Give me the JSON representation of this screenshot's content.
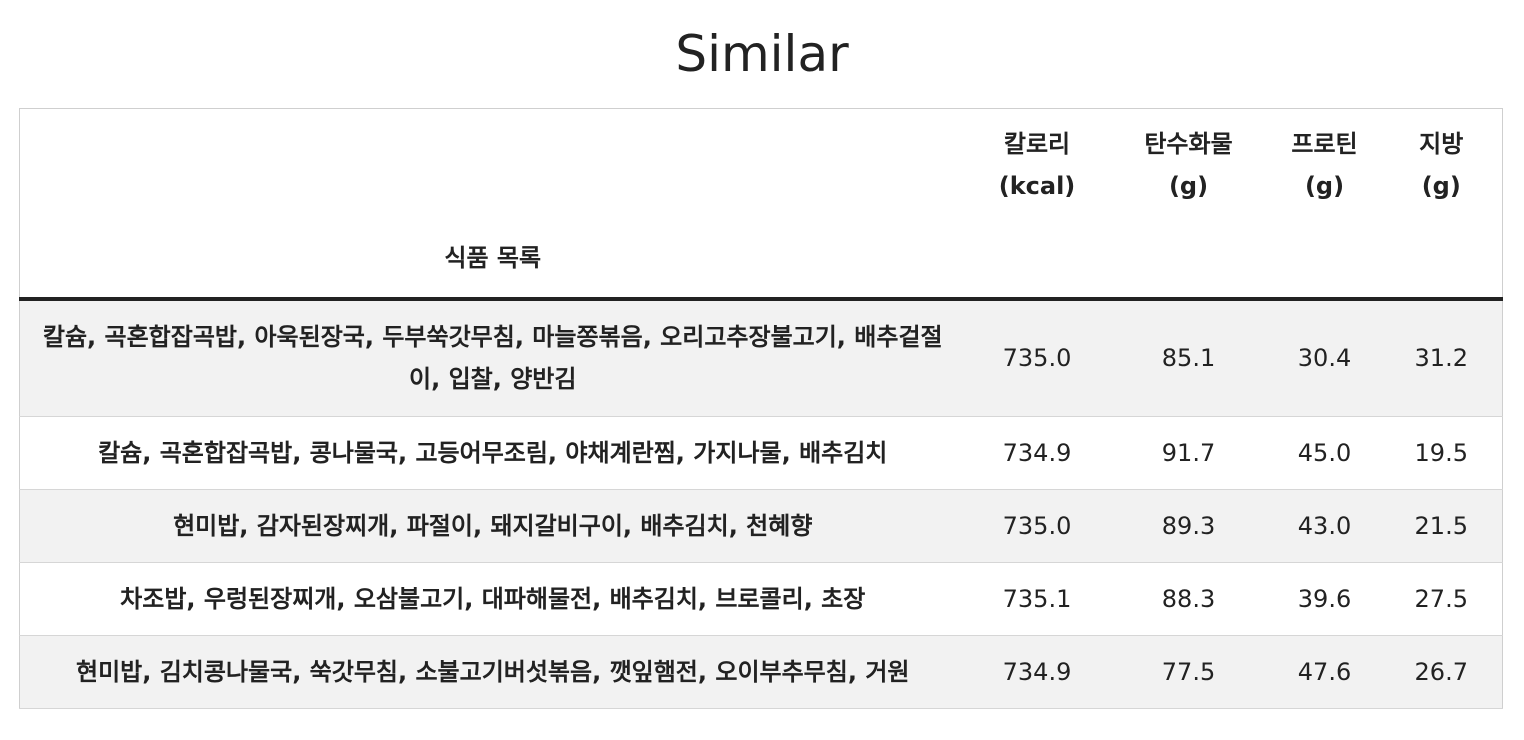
{
  "title": "Similar",
  "table": {
    "headers": {
      "food": "식품 목록",
      "kcal": [
        "칼로리",
        "(kcal)"
      ],
      "carb": [
        "탄수화물",
        "(g)"
      ],
      "protein": [
        "프로틴",
        "(g)"
      ],
      "fat": [
        "지방",
        "(g)"
      ]
    },
    "rows": [
      {
        "food": "칼슘, 곡혼합잡곡밥, 아욱된장국, 두부쑥갓무침, 마늘쫑볶음, 오리고추장불고기, 배추겉절이, 입찰, 양반김",
        "kcal": "735.0",
        "carb": "85.1",
        "protein": "30.4",
        "fat": "31.2"
      },
      {
        "food": "칼슘, 곡혼합잡곡밥, 콩나물국, 고등어무조림, 야채계란찜, 가지나물, 배추김치",
        "kcal": "734.9",
        "carb": "91.7",
        "protein": "45.0",
        "fat": "19.5"
      },
      {
        "food": "현미밥, 감자된장찌개, 파절이, 돼지갈비구이, 배추김치, 천혜향",
        "kcal": "735.0",
        "carb": "89.3",
        "protein": "43.0",
        "fat": "21.5"
      },
      {
        "food": "차조밥, 우렁된장찌개, 오삼불고기, 대파해물전, 배추김치, 브로콜리, 초장",
        "kcal": "735.1",
        "carb": "88.3",
        "protein": "39.6",
        "fat": "27.5"
      },
      {
        "food": "현미밥, 김치콩나물국, 쑥갓무침, 소불고기버섯볶음, 깻잎햄전, 오이부추무침, 거원",
        "kcal": "734.9",
        "carb": "77.5",
        "protein": "47.6",
        "fat": "26.7"
      }
    ]
  },
  "colors": {
    "text": "#222222",
    "row_stripe": "#f2f2f2",
    "header_rule": "#222222",
    "border": "#cfcfcf"
  }
}
